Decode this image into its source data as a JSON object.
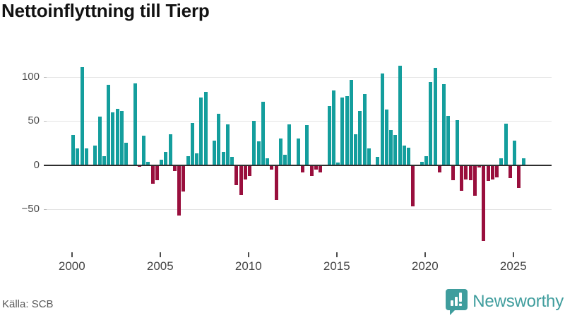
{
  "title": "Nettoinflyttning till Tierp",
  "source": "Källa: SCB",
  "brand": {
    "name": "Newsworthy",
    "icon": "newsworthy-badge-icon"
  },
  "colors": {
    "positive": "#149e9d",
    "negative": "#990f3d",
    "zero_axis": "#2e2e2e",
    "grid": "#e4e4e4",
    "brand_teal": "#3f9d9d",
    "axis_text": "#4d4d4d"
  },
  "chart_data": {
    "type": "bar",
    "title": "Nettoinflyttning till Tierp",
    "frequency": "quarterly",
    "x_start": "2000Q1",
    "x_end": "2025Q3",
    "xlabel": "",
    "ylabel": "",
    "ylim": [
      -90,
      120
    ],
    "grid": true,
    "legend": "none",
    "y_ticks": [
      100,
      50,
      0,
      -50
    ],
    "y_tick_labels": [
      "100",
      "50",
      "0",
      "−50"
    ],
    "x_tick_years": [
      2000,
      2005,
      2010,
      2015,
      2020,
      2025
    ],
    "x_tick_labels": [
      "2000",
      "2005",
      "2010",
      "2015",
      "2020",
      "2025"
    ],
    "series_by_year": [
      {
        "year": 2000,
        "values": [
          34,
          19,
          111,
          19
        ]
      },
      {
        "year": 2001,
        "values": [
          0,
          22,
          55,
          10
        ]
      },
      {
        "year": 2002,
        "values": [
          91,
          60,
          64,
          61
        ]
      },
      {
        "year": 2003,
        "values": [
          25,
          0,
          93,
          -2
        ]
      },
      {
        "year": 2004,
        "values": [
          33,
          4,
          -21,
          -17
        ]
      },
      {
        "year": 2005,
        "values": [
          6,
          15,
          35,
          -7
        ]
      },
      {
        "year": 2006,
        "values": [
          -57,
          -30,
          10,
          48
        ]
      },
      {
        "year": 2007,
        "values": [
          13,
          77,
          83,
          0
        ]
      },
      {
        "year": 2008,
        "values": [
          28,
          58,
          15,
          46
        ]
      },
      {
        "year": 2009,
        "values": [
          9,
          -23,
          -34,
          -16
        ]
      },
      {
        "year": 2010,
        "values": [
          -12,
          50,
          27,
          72
        ]
      },
      {
        "year": 2011,
        "values": [
          8,
          -5,
          -40,
          30
        ]
      },
      {
        "year": 2012,
        "values": [
          12,
          46,
          0,
          30
        ]
      },
      {
        "year": 2013,
        "values": [
          -8,
          45,
          -12,
          -5
        ]
      },
      {
        "year": 2014,
        "values": [
          -8,
          0,
          67,
          85
        ]
      },
      {
        "year": 2015,
        "values": [
          3,
          77,
          78,
          97
        ]
      },
      {
        "year": 2016,
        "values": [
          35,
          61,
          81,
          19
        ]
      },
      {
        "year": 2017,
        "values": [
          0,
          9,
          104,
          63
        ]
      },
      {
        "year": 2018,
        "values": [
          40,
          34,
          113,
          22
        ]
      },
      {
        "year": 2019,
        "values": [
          20,
          -47,
          0,
          4
        ]
      },
      {
        "year": 2020,
        "values": [
          10,
          94,
          110,
          -8
        ]
      },
      {
        "year": 2021,
        "values": [
          92,
          56,
          -17,
          51
        ]
      },
      {
        "year": 2022,
        "values": [
          -29,
          -16,
          -17,
          -35
        ]
      },
      {
        "year": 2023,
        "values": [
          -3,
          -86,
          -18,
          -16
        ]
      },
      {
        "year": 2024,
        "values": [
          -14,
          8,
          47,
          -15
        ]
      },
      {
        "year": 2025,
        "values": [
          28,
          -26,
          8
        ]
      }
    ]
  },
  "layout_hints": {
    "positive_color": "#149e9d",
    "negative_color": "#990f3d"
  }
}
